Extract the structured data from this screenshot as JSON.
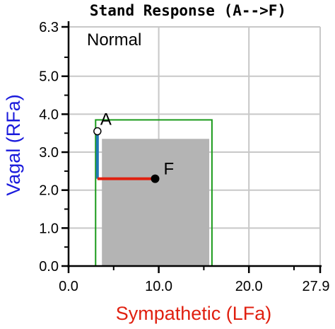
{
  "chart_data": {
    "type": "scatter",
    "title": "Stand Response (A-->F)",
    "xlabel": "Sympathetic (LFa)",
    "ylabel": "Vagal (RFa)",
    "xlim": [
      0,
      27.9
    ],
    "ylim": [
      0,
      6.3
    ],
    "x_ticks": [
      {
        "value": 0,
        "label": "0.0"
      },
      {
        "value": 10,
        "label": "10.0"
      },
      {
        "value": 20,
        "label": "20.0"
      },
      {
        "value": 27.9,
        "label": "27.9"
      }
    ],
    "y_ticks": [
      {
        "value": 0,
        "label": "0.0"
      },
      {
        "value": 1,
        "label": "1.0"
      },
      {
        "value": 2,
        "label": "2.0"
      },
      {
        "value": 3,
        "label": "3.0"
      },
      {
        "value": 4,
        "label": "4.0"
      },
      {
        "value": 5,
        "label": "5.0"
      },
      {
        "value": 6.3,
        "label": "6.3"
      }
    ],
    "grid": true,
    "annotation": "Normal",
    "normal_box_outline": {
      "x0": 3.0,
      "x1": 15.9,
      "y0": 0.0,
      "y1": 3.85,
      "color": "#1a9a1a"
    },
    "normal_box_filled": {
      "x0": 3.7,
      "x1": 15.6,
      "y0": 0.0,
      "y1": 3.35,
      "color": "#b4b4b4"
    },
    "points": [
      {
        "label": "A",
        "x": 3.2,
        "y": 3.55,
        "style": "open"
      },
      {
        "label": "F",
        "x": 9.6,
        "y": 2.3,
        "style": "filled"
      }
    ],
    "vagal_segment": {
      "x": 3.2,
      "y_from": 3.55,
      "y_to": 2.3,
      "color": "#1f77b4"
    },
    "sympathetic_segment": {
      "y": 2.3,
      "x_from": 3.2,
      "x_to": 9.6,
      "color": "#e02010"
    },
    "colors": {
      "xlabel": "#e02010",
      "ylabel": "#1a1adc"
    }
  }
}
